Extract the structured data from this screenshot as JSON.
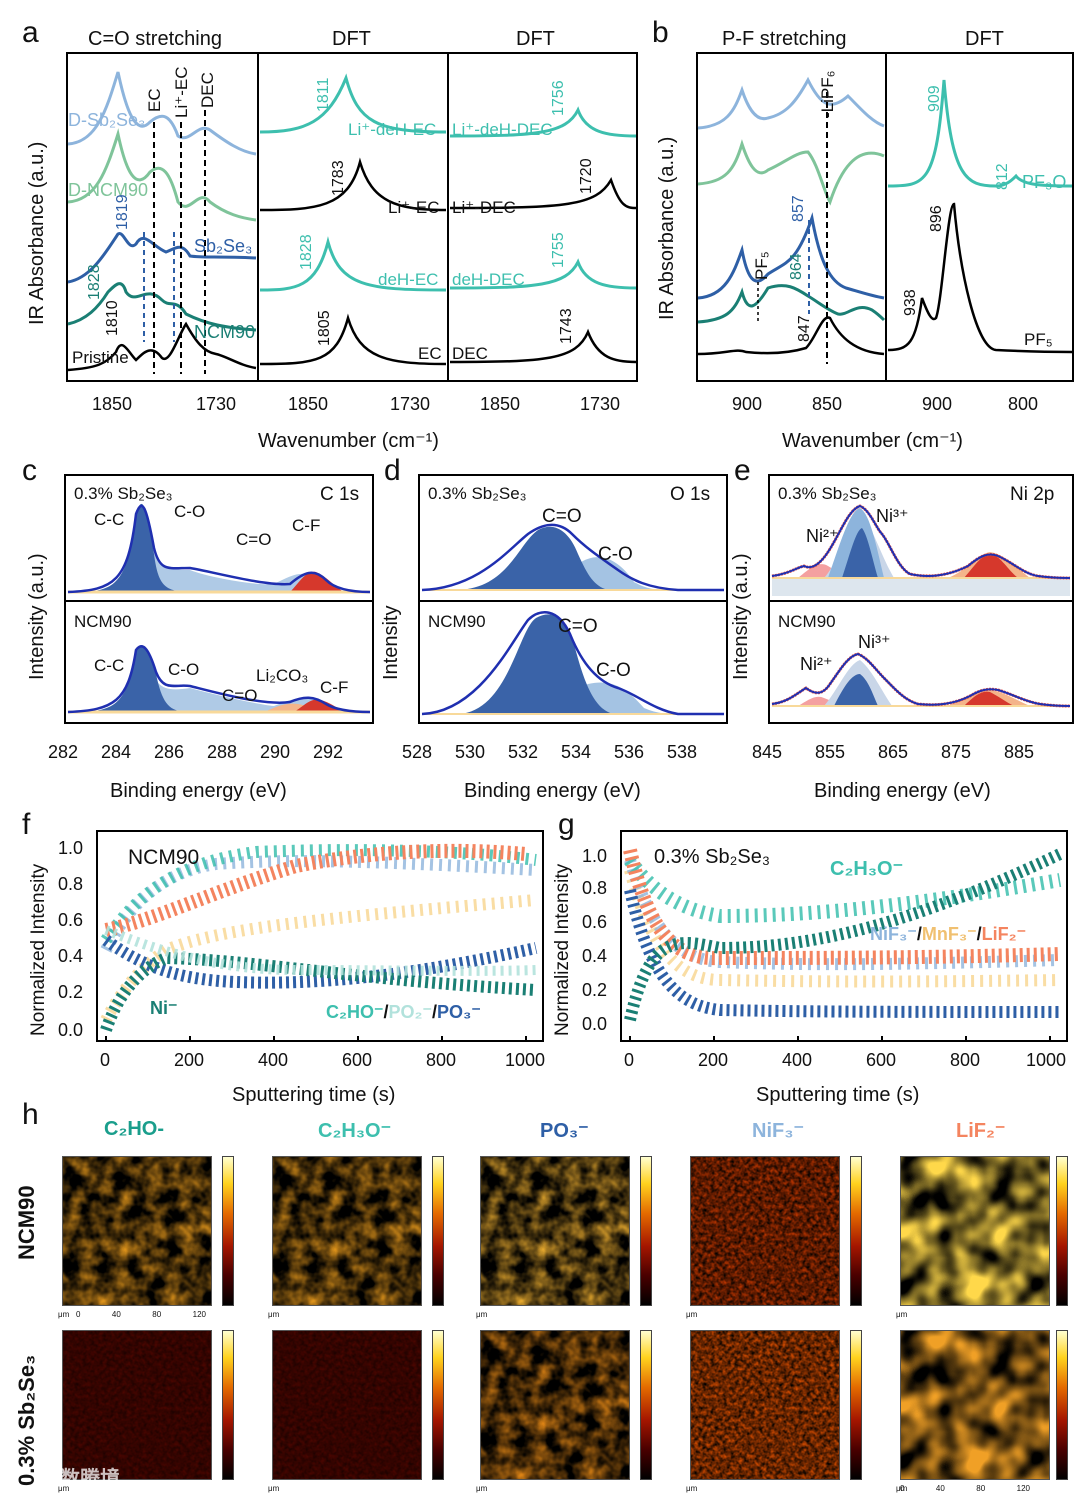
{
  "panels": {
    "a": {
      "label": "a",
      "titles": [
        "C=O stretching",
        "DFT",
        "DFT"
      ],
      "ylabel": "IR Absorbance (a.u.)",
      "xticks_left": [
        "1850",
        "1730"
      ],
      "xticks_mid": [
        "1850",
        "1730"
      ],
      "xticks_right": [
        "1850",
        "1730"
      ],
      "markers": [
        "EC",
        "Li⁺-EC",
        "DEC"
      ],
      "curve_labels": [
        "D-Sb₂Se₃",
        "D-NCM90",
        "Sb₂Se₃",
        "NCM90",
        "Pristine"
      ],
      "peak_labels_left": [
        "1819",
        "1828",
        "1810"
      ],
      "dft_mid": [
        {
          "peak": "1811",
          "label": "Li⁺-deH-EC"
        },
        {
          "peak": "1783",
          "label": "Li⁺-EC"
        },
        {
          "peak": "1828",
          "label": "deH-EC"
        },
        {
          "peak": "1805",
          "label": "EC"
        }
      ],
      "dft_right": [
        {
          "peak": "1756",
          "label": "Li⁺-deH-DEC"
        },
        {
          "peak": "1720",
          "label": "Li⁺-DEC"
        },
        {
          "peak": "1755",
          "label": "deH-DEC"
        },
        {
          "peak": "1743",
          "label": "DEC"
        }
      ]
    },
    "b": {
      "label": "b",
      "titles": [
        "P-F stretching",
        "DFT"
      ],
      "ylabel": "IR Absorbance (a.u.)",
      "xticks_left": [
        "900",
        "850"
      ],
      "xticks_right": [
        "900",
        "800"
      ],
      "marker": "-LiPF₆",
      "peak_labels": [
        "857",
        "864",
        "847"
      ],
      "pf5_label": "PF₅",
      "dft": [
        {
          "peak": "909",
          "label": "PF₃O"
        },
        {
          "peak": "812",
          "label": ""
        },
        {
          "peak": "896",
          "label": ""
        },
        {
          "peak": "938",
          "label": "PF₅"
        }
      ]
    },
    "ab_xlabel": "Wavenumber (cm⁻¹)",
    "c": {
      "label": "c",
      "top_sample": "0.3% Sb₂Se₃",
      "core": "C 1s",
      "top_peaks": [
        "C-C",
        "C-O",
        "C=O",
        "C-F"
      ],
      "bottom_sample": "NCM90",
      "bottom_peaks": [
        "C-C",
        "C-O",
        "C=O",
        "Li₂CO₃",
        "C-F"
      ],
      "xticks": [
        "282",
        "284",
        "286",
        "288",
        "290",
        "292"
      ],
      "ylabel": "Intensity (a.u.)"
    },
    "d": {
      "label": "d",
      "top_sample": "0.3% Sb₂Se₃",
      "core": "O 1s",
      "top_peaks": [
        "C=O",
        "C-O"
      ],
      "bottom_sample": "NCM90",
      "bottom_peaks": [
        "C=O",
        "C-O"
      ],
      "xticks": [
        "528",
        "530",
        "532",
        "534",
        "536",
        "538"
      ],
      "ylabel": "Intensity"
    },
    "e": {
      "label": "e",
      "top_sample": "0.3% Sb₂Se₃",
      "core": "Ni 2p",
      "top_peaks": [
        "Ni²⁺",
        "Ni³⁺"
      ],
      "bottom_sample": "NCM90",
      "bottom_peaks": [
        "Ni²⁺",
        "Ni³⁺"
      ],
      "xticks": [
        "845",
        "855",
        "865",
        "875",
        "885"
      ],
      "ylabel": "Intensity (a.u.)"
    },
    "cde_xlabel": "Binding energy (eV)",
    "f": {
      "label": "f",
      "sample": "NCM90",
      "ylabel": "Normalized Intensity",
      "xlabel": "Sputtering time (s)",
      "yticks": [
        "0.0",
        "0.2",
        "0.4",
        "0.6",
        "0.8",
        "1.0"
      ],
      "xticks": [
        "0",
        "200",
        "400",
        "600",
        "800",
        "1000"
      ],
      "label_ni": "Ni⁻",
      "label_series": [
        "C₂HO⁻",
        "/",
        "PO₂⁻",
        "/",
        "PO₃⁻"
      ]
    },
    "g": {
      "label": "g",
      "sample": "0.3% Sb₂Se₃",
      "ylabel": "Normalized Intensity",
      "xlabel": "Sputtering time (s)",
      "yticks": [
        "0.0",
        "0.2",
        "0.4",
        "0.6",
        "0.8",
        "1.0"
      ],
      "xticks": [
        "0",
        "200",
        "400",
        "600",
        "800",
        "1000"
      ],
      "label_c2h3o": "C₂H₃O⁻",
      "label_series": [
        "NiF₃⁻",
        "/",
        "MnF₃⁻",
        "/",
        "LiF₂⁻"
      ]
    },
    "h": {
      "label": "h",
      "columns": [
        "C₂HO-",
        "C₂H₃O⁻",
        "PO₃⁻",
        "NiF₃⁻",
        "LiF₂⁻"
      ],
      "rows": [
        "NCM90",
        "0.3% Sb₂Se₃"
      ],
      "axis_unit": "μm",
      "axis_ticks": [
        "0",
        "40",
        "80",
        "120"
      ],
      "watermark": "东数腾境"
    }
  },
  "colors": {
    "teal": "#3dbfae",
    "dark_teal": "#1a7f74",
    "blue": "#2e5fa6",
    "light_blue": "#8db4dc",
    "green": "#7fc49a",
    "orange": "#f4845f",
    "cream": "#f8d99a",
    "navy": "#1f2fb0"
  }
}
